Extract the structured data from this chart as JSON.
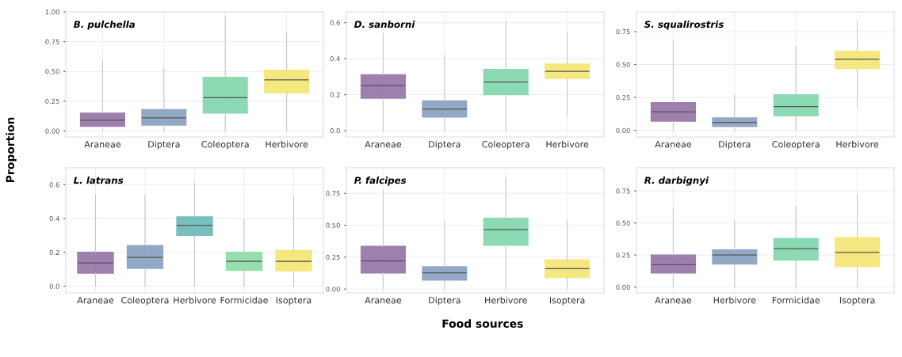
{
  "chart_data": [
    {
      "type": "box",
      "title": "B. pulchella",
      "ylabel": "Proportion",
      "categories": [
        "Araneae",
        "Diptera",
        "Coleoptera",
        "Herbivore"
      ],
      "colors": [
        "#8d6a9f",
        "#7f9bbd",
        "#79d4a8",
        "#f4e46a"
      ],
      "boxes": [
        {
          "low": 0,
          "q1": 0.04,
          "median": 0.09,
          "q3": 0.15,
          "high": 0.6
        },
        {
          "low": 0,
          "q1": 0.05,
          "median": 0.11,
          "q3": 0.18,
          "high": 0.53
        },
        {
          "low": 0,
          "q1": 0.15,
          "median": 0.28,
          "q3": 0.45,
          "high": 0.96
        },
        {
          "low": 0,
          "q1": 0.32,
          "median": 0.43,
          "q3": 0.51,
          "high": 0.82
        }
      ],
      "ylim": [
        -0.05,
        1.0
      ],
      "yticks": [
        {
          "value": 0,
          "label": "0.00"
        },
        {
          "value": 0.25,
          "label": "0.25"
        },
        {
          "value": 0.5,
          "label": "0.50"
        },
        {
          "value": 0.75,
          "label": "0.75"
        },
        {
          "value": 1.0,
          "label": "1.00"
        }
      ],
      "grid": true
    },
    {
      "type": "box",
      "title": "D. sanborni",
      "categories": [
        "Araneae",
        "Diptera",
        "Coleoptera",
        "Herbivore"
      ],
      "colors": [
        "#8d6a9f",
        "#7f9bbd",
        "#79d4a8",
        "#f4e46a"
      ],
      "boxes": [
        {
          "low": 0,
          "q1": 0.18,
          "median": 0.25,
          "q3": 0.31,
          "high": 0.54
        },
        {
          "low": 0,
          "q1": 0.076,
          "median": 0.12,
          "q3": 0.165,
          "high": 0.42
        },
        {
          "low": 0,
          "q1": 0.2,
          "median": 0.27,
          "q3": 0.34,
          "high": 0.61
        },
        {
          "low": 0.08,
          "q1": 0.29,
          "median": 0.33,
          "q3": 0.37,
          "high": 0.55
        }
      ],
      "ylim": [
        -0.035,
        0.66
      ],
      "yticks": [
        {
          "value": 0,
          "label": "0.0"
        },
        {
          "value": 0.2,
          "label": "0.2"
        },
        {
          "value": 0.4,
          "label": "0.4"
        },
        {
          "value": 0.6,
          "label": "0.6"
        }
      ],
      "grid": true
    },
    {
      "type": "box",
      "title": "S. squalirostris",
      "categories": [
        "Araneae",
        "Diptera",
        "Coleoptera",
        "Herbivore"
      ],
      "colors": [
        "#8d6a9f",
        "#7f9bbd",
        "#79d4a8",
        "#f4e46a"
      ],
      "boxes": [
        {
          "low": 0,
          "q1": 0.07,
          "median": 0.14,
          "q3": 0.21,
          "high": 0.68
        },
        {
          "low": 0,
          "q1": 0.03,
          "median": 0.06,
          "q3": 0.095,
          "high": 0.27
        },
        {
          "low": 0,
          "q1": 0.11,
          "median": 0.18,
          "q3": 0.27,
          "high": 0.64
        },
        {
          "low": 0.18,
          "q1": 0.47,
          "median": 0.54,
          "q3": 0.6,
          "high": 0.82
        }
      ],
      "ylim": [
        -0.05,
        0.9
      ],
      "yticks": [
        {
          "value": 0,
          "label": "0.00"
        },
        {
          "value": 0.25,
          "label": "0.25"
        },
        {
          "value": 0.5,
          "label": "0.50"
        },
        {
          "value": 0.75,
          "label": "0.75"
        }
      ],
      "grid": true
    },
    {
      "type": "box",
      "title": "L. latrans",
      "categories": [
        "Araneae",
        "Coleoptera",
        "Herbivore",
        "Formicidae",
        "Isoptera"
      ],
      "colors": [
        "#8d6a9f",
        "#7f9bbd",
        "#5fb5b3",
        "#86d9a0",
        "#f4e46a"
      ],
      "boxes": [
        {
          "low": 0,
          "q1": 0.077,
          "median": 0.137,
          "q3": 0.2,
          "high": 0.54
        },
        {
          "low": 0,
          "q1": 0.105,
          "median": 0.17,
          "q3": 0.24,
          "high": 0.54
        },
        {
          "low": 0,
          "q1": 0.3,
          "median": 0.36,
          "q3": 0.41,
          "high": 0.61
        },
        {
          "low": 0,
          "q1": 0.093,
          "median": 0.147,
          "q3": 0.2,
          "high": 0.395
        },
        {
          "low": 0,
          "q1": 0.09,
          "median": 0.147,
          "q3": 0.21,
          "high": 0.53
        }
      ],
      "ylim": [
        -0.04,
        0.7
      ],
      "yticks": [
        {
          "value": 0,
          "label": "0.0"
        },
        {
          "value": 0.2,
          "label": "0.2"
        },
        {
          "value": 0.4,
          "label": "0.4"
        },
        {
          "value": 0.6,
          "label": "0.6"
        }
      ],
      "grid": true
    },
    {
      "type": "box",
      "title": "P. falcipes",
      "xlabel": "Food sources",
      "categories": [
        "Araneae",
        "Diptera",
        "Herbivore",
        "Isoptera"
      ],
      "colors": [
        "#8d6a9f",
        "#7f9bbd",
        "#79d4a8",
        "#f4e46a"
      ],
      "boxes": [
        {
          "low": 0,
          "q1": 0.127,
          "median": 0.22,
          "q3": 0.334,
          "high": 0.77
        },
        {
          "low": 0,
          "q1": 0.07,
          "median": 0.127,
          "q3": 0.175,
          "high": 0.53
        },
        {
          "low": 0,
          "q1": 0.344,
          "median": 0.465,
          "q3": 0.555,
          "high": 0.87
        },
        {
          "low": 0,
          "q1": 0.09,
          "median": 0.16,
          "q3": 0.23,
          "high": 0.54
        }
      ],
      "ylim": [
        -0.03,
        0.95
      ],
      "yticks": [
        {
          "value": 0,
          "label": "0.00"
        },
        {
          "value": 0.25,
          "label": "0.25"
        },
        {
          "value": 0.5,
          "label": "0.50"
        },
        {
          "value": 0.75,
          "label": "0.75"
        }
      ],
      "grid": true
    },
    {
      "type": "box",
      "title": "R. darbignyi",
      "categories": [
        "Araneae",
        "Herbivore",
        "Formicidae",
        "Isoptera"
      ],
      "colors": [
        "#8d6a9f",
        "#7f9bbd",
        "#79d4a8",
        "#f4e46a"
      ],
      "boxes": [
        {
          "low": 0,
          "q1": 0.11,
          "median": 0.175,
          "q3": 0.25,
          "high": 0.62
        },
        {
          "low": 0,
          "q1": 0.18,
          "median": 0.25,
          "q3": 0.29,
          "high": 0.52
        },
        {
          "low": 0,
          "q1": 0.21,
          "median": 0.3,
          "q3": 0.38,
          "high": 0.63
        },
        {
          "low": 0,
          "q1": 0.16,
          "median": 0.27,
          "q3": 0.385,
          "high": 0.725
        }
      ],
      "ylim": [
        -0.045,
        0.93
      ],
      "yticks": [
        {
          "value": 0,
          "label": "0.00"
        },
        {
          "value": 0.25,
          "label": "0.25"
        },
        {
          "value": 0.5,
          "label": "0.50"
        },
        {
          "value": 0.75,
          "label": "0.75"
        }
      ],
      "grid": true
    }
  ]
}
